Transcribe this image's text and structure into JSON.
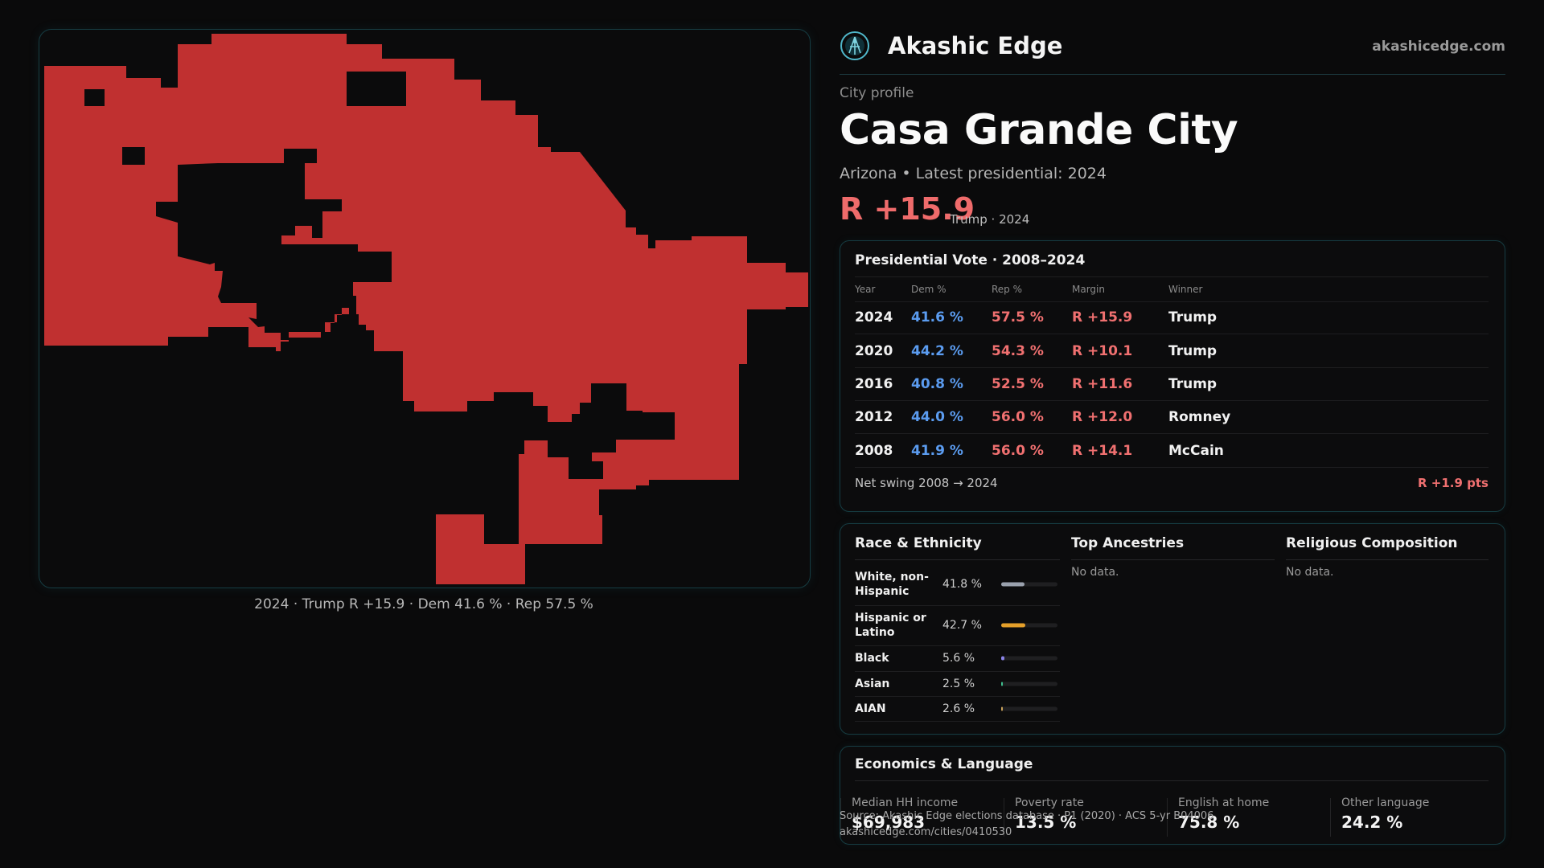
{
  "header": {
    "brand": "Akashic Edge",
    "site": "akashicedge.com"
  },
  "map": {
    "caption": "2024 · Trump R +15.9 · Dem 41.6 % · Rep 57.5 %",
    "fill_color": "#c03030"
  },
  "profile": {
    "eyebrow": "City profile",
    "city": "Casa Grande City",
    "subtitle": "Arizona • Latest presidential: 2024",
    "margin": "R +15.9",
    "margin_note": "Trump · 2024"
  },
  "vote_table": {
    "title": "Presidential Vote · 2008–2024",
    "headers": [
      "Year",
      "Dem %",
      "Rep %",
      "Margin",
      "Winner"
    ],
    "rows": [
      {
        "year": "2024",
        "dem": "41.6 %",
        "rep": "57.5 %",
        "margin": "R +15.9",
        "winner": "Trump"
      },
      {
        "year": "2020",
        "dem": "44.2 %",
        "rep": "54.3 %",
        "margin": "R +10.1",
        "winner": "Trump"
      },
      {
        "year": "2016",
        "dem": "40.8 %",
        "rep": "52.5 %",
        "margin": "R +11.6",
        "winner": "Trump"
      },
      {
        "year": "2012",
        "dem": "44.0 %",
        "rep": "56.0 %",
        "margin": "R +12.0",
        "winner": "Romney"
      },
      {
        "year": "2008",
        "dem": "41.9 %",
        "rep": "56.0 %",
        "margin": "R +14.1",
        "winner": "McCain"
      }
    ],
    "swing_label": "Net swing 2008 → 2024",
    "swing_value": "R +1.9 pts",
    "colors": {
      "dem": "#5b9cf0",
      "rep": "#f07070"
    }
  },
  "demographics": {
    "race_title": "Race & Ethnicity",
    "race": [
      {
        "label": "White, non-Hispanic",
        "value": "41.8 %",
        "pct": 41.8,
        "color": "#9aa1ad"
      },
      {
        "label": "Hispanic or Latino",
        "value": "42.7 %",
        "pct": 42.7,
        "color": "#e5a02a"
      },
      {
        "label": "Black",
        "value": "5.6 %",
        "pct": 5.6,
        "color": "#8b84e8"
      },
      {
        "label": "Asian",
        "value": "2.5 %",
        "pct": 2.5,
        "color": "#3fbf8f"
      },
      {
        "label": "AIAN",
        "value": "2.6 %",
        "pct": 2.6,
        "color": "#c9a25a"
      }
    ],
    "ancestry_title": "Top Ancestries",
    "ancestry_empty": "No data.",
    "religion_title": "Religious Composition",
    "religion_empty": "No data."
  },
  "economics": {
    "title": "Economics & Language",
    "stats": [
      {
        "label": "Median HH income",
        "value": "$69,983"
      },
      {
        "label": "Poverty rate",
        "value": "13.5 %"
      },
      {
        "label": "English at home",
        "value": "75.8 %"
      },
      {
        "label": "Other language",
        "value": "24.2 %"
      }
    ]
  },
  "footer": {
    "source": "Source: Akashic Edge elections database · P1 (2020) · ACS 5-yr B04006",
    "url": "akashicedge.com/cities/0410530"
  }
}
